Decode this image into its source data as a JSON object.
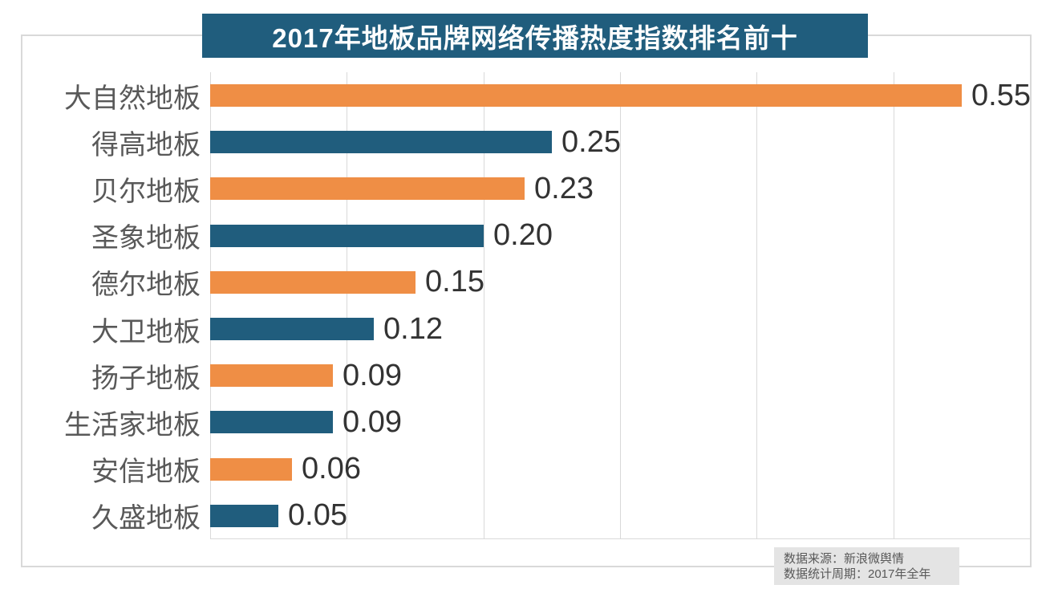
{
  "title": "2017年地板品牌网络传播热度指数排名前十",
  "source": {
    "line1": "数据来源：新浪微舆情",
    "line2": "数据统计周期：2017年全年"
  },
  "colors": {
    "banner_bg": "#205d7d",
    "bar_orange": "#ef8e45",
    "bar_teal": "#205d7d",
    "gridline": "#d9d9d9",
    "frame_border": "#d9d9d9",
    "category_label": "#595959",
    "value_label": "#333333",
    "source_bg": "#e4e4e4",
    "source_text": "#595959"
  },
  "chart_data": {
    "type": "bar",
    "orientation": "horizontal",
    "title": "2017年地板品牌网络传播热度指数排名前十",
    "categories": [
      "大自然地板",
      "得高地板",
      "贝尔地板",
      "圣象地板",
      "德尔地板",
      "大卫地板",
      "扬子地板",
      "生活家地板",
      "安信地板",
      "久盛地板"
    ],
    "values": [
      0.55,
      0.25,
      0.23,
      0.2,
      0.15,
      0.12,
      0.09,
      0.09,
      0.06,
      0.05
    ],
    "value_labels": [
      "0.55",
      "0.25",
      "0.23",
      "0.20",
      "0.15",
      "0.12",
      "0.09",
      "0.09",
      "0.06",
      "0.05"
    ],
    "bar_color_pattern": [
      "#ef8e45",
      "#205d7d"
    ],
    "xlabel": "",
    "ylabel": "",
    "xlim": [
      0,
      0.6
    ],
    "gridline_interval": 0.1,
    "grid": true,
    "legend": false,
    "data_labels": true
  }
}
